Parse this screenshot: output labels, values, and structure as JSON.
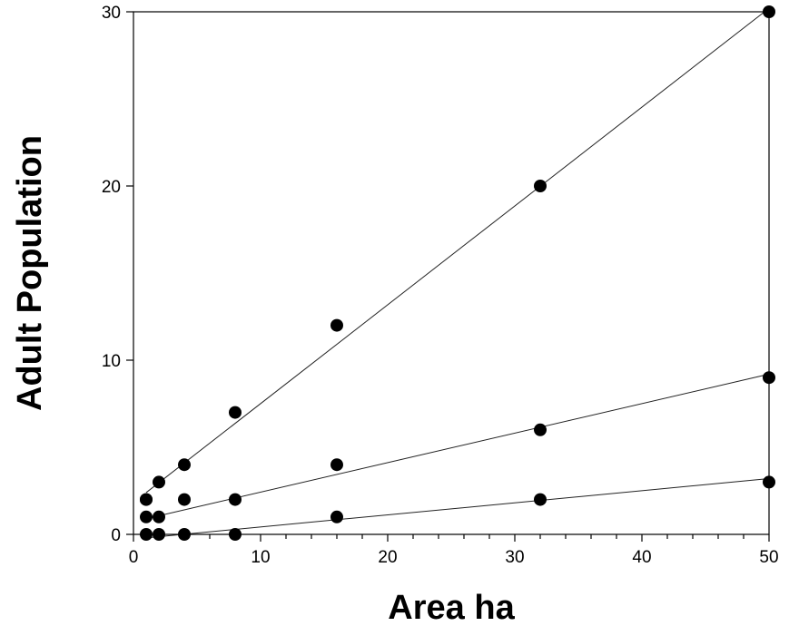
{
  "chart_data": {
    "type": "scatter",
    "title": "",
    "xlabel": "Area ha",
    "ylabel": "Adult Population",
    "xlim": [
      0,
      50
    ],
    "ylim": [
      0,
      30
    ],
    "x_ticks": [
      0,
      10,
      20,
      30,
      40,
      50
    ],
    "y_ticks": [
      0,
      10,
      20,
      30
    ],
    "x_minor_step": 2,
    "grid": false,
    "legend": "none",
    "series": [
      {
        "x": [
          1,
          1,
          2,
          4,
          8,
          16,
          32,
          50
        ],
        "y": [
          2,
          2,
          3,
          4,
          7,
          12,
          20,
          30
        ],
        "fit": {
          "x": [
            1,
            50
          ],
          "y": [
            2.4,
            30.2
          ]
        }
      },
      {
        "x": [
          1,
          2,
          4,
          8,
          16,
          32,
          50
        ],
        "y": [
          1,
          1,
          2,
          2,
          4,
          6,
          9
        ],
        "fit": {
          "x": [
            1,
            50
          ],
          "y": [
            0.9,
            9.2
          ]
        }
      },
      {
        "x": [
          1,
          2,
          4,
          8,
          16,
          32,
          50
        ],
        "y": [
          0,
          0,
          0,
          0,
          1,
          2,
          3
        ],
        "fit": {
          "x": [
            1,
            50
          ],
          "y": [
            -0.2,
            3.2
          ]
        }
      }
    ]
  }
}
